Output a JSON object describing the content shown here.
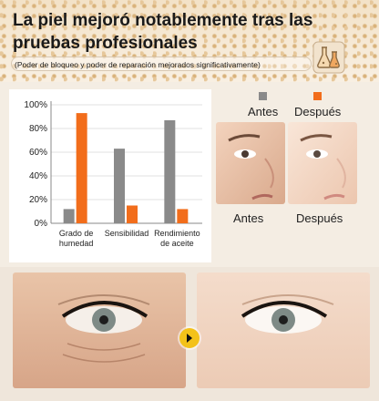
{
  "headline": "La piel mejoró notablemente tras las pruebas profesionales",
  "subtitle": "(Poder de bloqueo y poder de reparación mejorados significativamente)",
  "legend": {
    "before": "Antes",
    "after": "Después"
  },
  "photo_captions": {
    "before": "Antes",
    "after": "Después"
  },
  "colors": {
    "before": "#8a8a8a",
    "after": "#f26d1b",
    "accent": "#f3c21a"
  },
  "icons": {
    "flask": "flask-icon",
    "arrow": "arrow-right-icon"
  },
  "chart_data": {
    "type": "bar",
    "categories": [
      "Grado de humedad",
      "Sensibilidad",
      "Rendimiento de aceite"
    ],
    "series": [
      {
        "name": "Antes",
        "values": [
          12,
          63,
          87
        ]
      },
      {
        "name": "Después",
        "values": [
          93,
          15,
          12
        ]
      }
    ],
    "yticks": [
      "100%",
      "80%",
      "60%",
      "40%",
      "20%",
      "0%"
    ],
    "ylim": [
      0,
      100
    ],
    "grid": true
  }
}
